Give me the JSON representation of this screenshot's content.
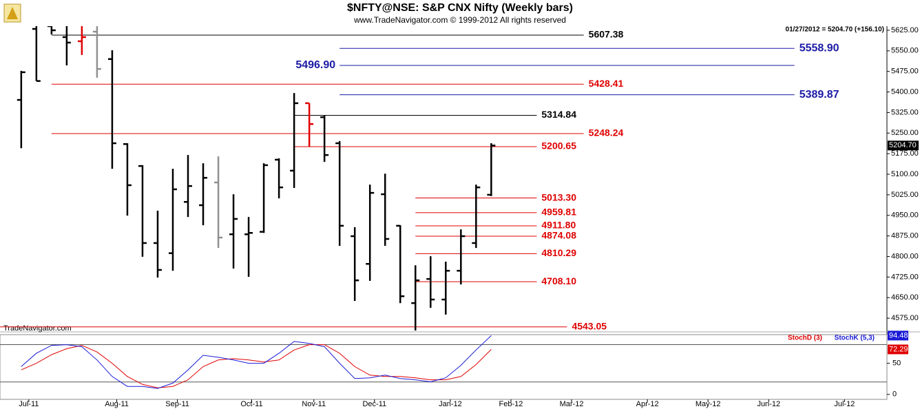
{
  "chart_data": [
    {
      "type": "ohlc",
      "title": "$NFTY@NSE:  S&P CNX Nifty  (Weekly bars)",
      "subtitle": "www.TradeNavigator.com © 1999-2012 All rights reserved",
      "info": "01/27/2012 = 5204.70 (+156.10)",
      "watermark": "TradeNavigator.com",
      "x": [
        0,
        1,
        2,
        3,
        4,
        5,
        6,
        7,
        8,
        9,
        10,
        11,
        12,
        13,
        14,
        15,
        16,
        17,
        18,
        19,
        20,
        21,
        22,
        23,
        24,
        25,
        26,
        27,
        28,
        29,
        30,
        31
      ],
      "open": [
        5371,
        5630,
        5640,
        5600,
        5585,
        5620,
        5520,
        5210,
        5130,
        4849,
        4812,
        4999,
        4987,
        5070,
        4881,
        4881,
        4890,
        5153,
        5113,
        5359,
        5308,
        5213,
        4874,
        4773,
        5027,
        4912,
        4630,
        4718,
        4643,
        4748,
        4849,
        5025
      ],
      "high": [
        5477,
        5660,
        5660,
        5650,
        5640,
        5640,
        5552,
        5213,
        5133,
        4967,
        5120,
        5170,
        5140,
        5165,
        5027,
        4944,
        5140,
        5158,
        5396,
        5359,
        5316,
        5221,
        4907,
        5062,
        5102,
        4914,
        4768,
        4801,
        4781,
        4899,
        5062,
        5213
      ],
      "low": [
        5195,
        5440,
        5610,
        5497,
        5535,
        5452,
        5120,
        4949,
        4799,
        4723,
        4748,
        4944,
        4914,
        4831,
        4756,
        4726,
        4886,
        5012,
        5050,
        5200,
        5145,
        4839,
        4638,
        4711,
        4839,
        4630,
        4530,
        4613,
        4588,
        4698,
        4831,
        5020
      ],
      "close": [
        5472,
        5440,
        5625,
        5580,
        5600,
        5484,
        5213,
        5060,
        4849,
        4751,
        5045,
        5057,
        5087,
        4869,
        4937,
        4886,
        5133,
        5052,
        5359,
        5283,
        5170,
        4912,
        4713,
        5032,
        4864,
        4655,
        4713,
        4643,
        4748,
        4874,
        5052,
        5204.7
      ],
      "colors": [
        "#000000",
        "#000000",
        "#000000",
        "#000000",
        "#e00000",
        "#909090",
        "#000000",
        "#000000",
        "#000000",
        "#000000",
        "#000000",
        "#000000",
        "#000000",
        "#909090",
        "#000000",
        "#000000",
        "#000000",
        "#000000",
        "#000000",
        "#e00000",
        "#000000",
        "#000000",
        "#000000",
        "#000000",
        "#000000",
        "#000000",
        "#000000",
        "#000000",
        "#000000",
        "#000000",
        "#000000",
        "#000000"
      ],
      "last_value_label": "5204.70",
      "xlim": [
        -1.4,
        57.1
      ],
      "ylim": [
        4525,
        5640
      ],
      "yticks": [
        {
          "value": 4575,
          "label": "4575.00"
        },
        {
          "value": 4650,
          "label": "4650.00"
        },
        {
          "value": 4725,
          "label": "4725.00"
        },
        {
          "value": 4800,
          "label": "4800.00"
        },
        {
          "value": 4875,
          "label": "4875.00"
        },
        {
          "value": 4950,
          "label": "4950.00"
        },
        {
          "value": 5025,
          "label": "5025.00"
        },
        {
          "value": 5100,
          "label": "5100.00"
        },
        {
          "value": 5175,
          "label": "5175.00"
        },
        {
          "value": 5250,
          "label": "5250.00"
        },
        {
          "value": 5325,
          "label": "5325.00"
        },
        {
          "value": 5400,
          "label": "5400.00"
        },
        {
          "value": 5475,
          "label": "5475.00"
        },
        {
          "value": 5550,
          "label": "5550.00"
        },
        {
          "value": 5625,
          "label": "5625.00"
        }
      ],
      "levels": [
        {
          "value": 5607.38,
          "color": "#000000",
          "from": 2,
          "to": 37.1,
          "side": "right"
        },
        {
          "value": 5558.9,
          "color": "#1a1aa6",
          "from": 21,
          "to": 51,
          "side": "right",
          "label": "5558.90"
        },
        {
          "value": 5496.9,
          "color": "#1a1aa6",
          "from": 21,
          "to": 51,
          "side": "left",
          "label": "5496.90"
        },
        {
          "value": 5428.41,
          "color": "#e00000",
          "from": 2,
          "to": 37.1,
          "side": "right"
        },
        {
          "value": 5389.87,
          "color": "#1a1aa6",
          "from": 21,
          "to": 51,
          "side": "right"
        },
        {
          "value": 5314.84,
          "color": "#000000",
          "from": 18,
          "to": 34,
          "side": "right"
        },
        {
          "value": 5248.24,
          "color": "#e00000",
          "from": 2,
          "to": 37.1,
          "side": "right"
        },
        {
          "value": 5200.65,
          "color": "#e00000",
          "from": 18,
          "to": 34,
          "side": "right"
        },
        {
          "value": 5013.3,
          "color": "#e00000",
          "from": 26,
          "to": 34,
          "side": "right",
          "label": "5013.30"
        },
        {
          "value": 4959.81,
          "color": "#e00000",
          "from": 26,
          "to": 34,
          "side": "right"
        },
        {
          "value": 4911.8,
          "color": "#e00000",
          "from": 26,
          "to": 34,
          "side": "right",
          "label": "4911.80"
        },
        {
          "value": 4874.08,
          "color": "#e00000",
          "from": 26,
          "to": 34,
          "side": "right"
        },
        {
          "value": 4810.29,
          "color": "#e00000",
          "from": 26,
          "to": 34,
          "side": "right"
        },
        {
          "value": 4708.1,
          "color": "#e00000",
          "from": 26,
          "to": 34,
          "side": "right",
          "label": "4708.10"
        },
        {
          "value": 4543.05,
          "color": "#e00000",
          "from": -1.4,
          "to": 36,
          "side": "right"
        }
      ]
    },
    {
      "type": "line",
      "x": [
        0,
        1,
        2,
        3,
        4,
        5,
        6,
        7,
        8,
        9,
        10,
        11,
        12,
        13,
        14,
        15,
        16,
        17,
        18,
        19,
        20,
        21,
        22,
        23,
        24,
        25,
        26,
        27,
        28,
        29,
        30,
        31
      ],
      "series": [
        {
          "name": "StochD (3)",
          "color": "#e00000",
          "values": [
            39.4,
            50,
            63.8,
            73.4,
            78.7,
            68.1,
            50,
            28.7,
            16,
            10.6,
            12.8,
            23.4,
            44.7,
            55.3,
            57.4,
            55.3,
            52.1,
            55.3,
            71.3,
            79.8,
            79.8,
            66,
            44.7,
            30.9,
            28.7,
            28.7,
            26.6,
            23.4,
            23.4,
            28.7,
            47.9,
            72.29
          ]
        },
        {
          "name": "StochK (5,3)",
          "color": "#1a1ad6",
          "values": [
            44.7,
            66,
            78.7,
            79.8,
            76.6,
            55.3,
            28.7,
            12.8,
            12.8,
            9.6,
            18.1,
            39.4,
            62.8,
            59.6,
            55.3,
            50,
            50,
            66,
            85.1,
            81.9,
            76.6,
            50,
            25.5,
            26.6,
            30.9,
            25.5,
            23.4,
            20.2,
            26.6,
            46.8,
            71.3,
            94.48
          ]
        }
      ],
      "xlim": [
        -1.4,
        57.1
      ],
      "ylim": [
        -8,
        96
      ],
      "yticks": [
        0,
        50
      ],
      "reference_lines": [
        80,
        20
      ],
      "xticks": [
        {
          "value": 0.5,
          "label": "Jul-11"
        },
        {
          "value": 6.3,
          "label": "Aug-11"
        },
        {
          "value": 10.3,
          "label": "Sep-11"
        },
        {
          "value": 15.2,
          "label": "Oct-11"
        },
        {
          "value": 19.3,
          "label": "Nov-11"
        },
        {
          "value": 23.3,
          "label": "Dec-11"
        },
        {
          "value": 28.3,
          "label": "Jan-12"
        },
        {
          "value": 32.3,
          "label": "Feb-12"
        },
        {
          "value": 36.3,
          "label": "Mar-12"
        },
        {
          "value": 41.3,
          "label": "Apr-12"
        },
        {
          "value": 45.3,
          "label": "May-12"
        },
        {
          "value": 49.3,
          "label": "Jun-12"
        },
        {
          "value": 54.3,
          "label": "Jul-12"
        }
      ]
    }
  ]
}
